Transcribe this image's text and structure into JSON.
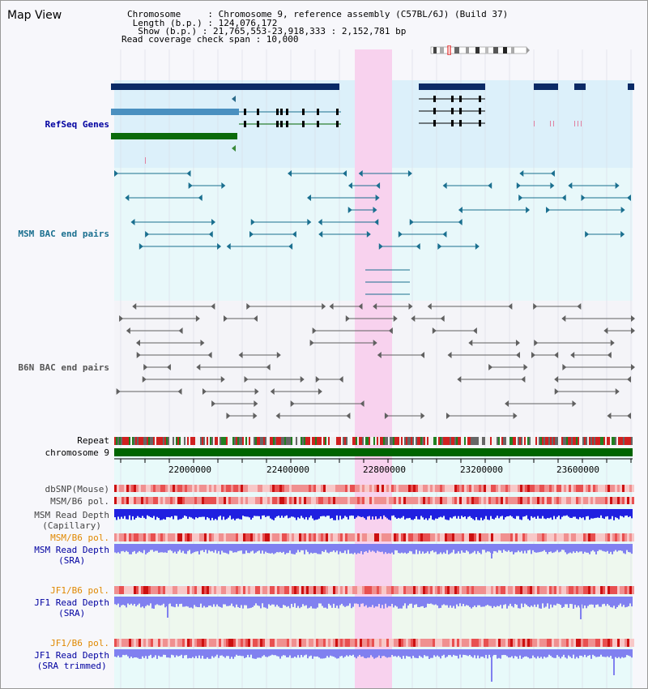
{
  "page": {
    "title": "Map View"
  },
  "info": {
    "chromosome": "Chromosome     : Chromosome 9, reference assembly (C57BL/6J) (Build 37)",
    "length": " Length (b.p.) : 124,076,172",
    "show": "  Show (b.p.) : 21,765,553-23,918,333 : 2,152,781 bp",
    "span": "Read coverage check span : 10,000"
  },
  "tracks": {
    "refseq": "RefSeq Genes",
    "msm_bac": "MSM BAC end pairs",
    "b6n_bac": "B6N BAC end pairs",
    "repeat": "Repeat",
    "chromosome": "chromosome 9",
    "dbsnp": "dbSNP(Mouse)",
    "msm_b6_pol": "MSM/B6 pol.",
    "msm_depth_cap_1": "MSM Read Depth",
    "msm_depth_cap_2": "(Capillary)",
    "msm_b6_pol_sra": "MSM/B6 pol.",
    "msm_depth_sra_1": "MSM Read Depth",
    "msm_depth_sra_2": "(SRA)",
    "jf1_b6_pol": "JF1/B6 pol.",
    "jf1_depth_1": "JF1 Read Depth",
    "jf1_depth_2": "(SRA)",
    "jf1_b6_pol_trim": "JF1/B6 pol.",
    "jf1_depth_trim_1": "JF1 Read Depth",
    "jf1_depth_trim_2": "(SRA trimmed)"
  },
  "ruler": {
    "ticks": [
      "22000000",
      "22400000",
      "22800000",
      "23200000",
      "23600000"
    ]
  },
  "colors": {
    "refseq_label": "#0000a0",
    "msm_label": "#1a6f8f",
    "b6n_label": "#555555",
    "pol_label": "#e08800",
    "depth_label": "#0000a0",
    "highlight": "#f8d2ee",
    "refseq_bg": "#dcf0fa",
    "bac_bg": "#e8f8fa"
  }
}
